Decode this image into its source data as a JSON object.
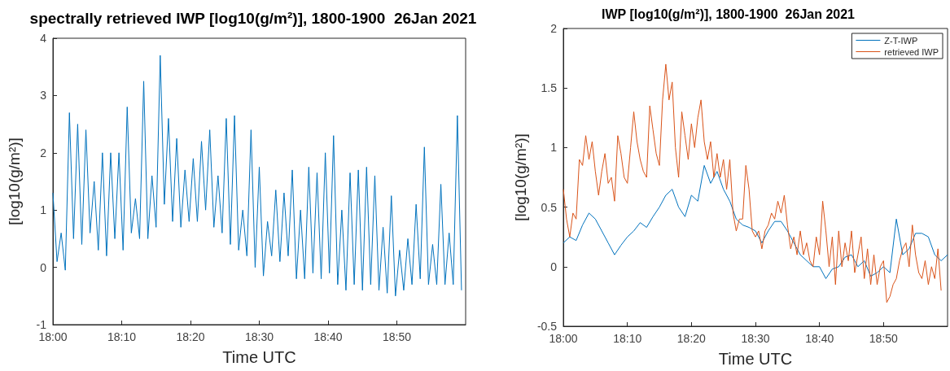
{
  "chart_data": [
    {
      "type": "line",
      "title": "spectrally retrieved IWP [log10(g/m²)], 1800-1900  26Jan 2021",
      "xlabel": "Time UTC",
      "ylabel": "[log10(g/m²)]",
      "xlim": [
        18,
        19
      ],
      "xticks": [
        {
          "value": 18,
          "label": "18:00"
        },
        {
          "value": 18.1667,
          "label": "18:10"
        },
        {
          "value": 18.3333,
          "label": "18:20"
        },
        {
          "value": 18.5,
          "label": "18:30"
        },
        {
          "value": 18.6667,
          "label": "18:40"
        },
        {
          "value": 18.8333,
          "label": "18:50"
        }
      ],
      "ylim": [
        -1,
        4
      ],
      "yticks": [
        -1,
        0,
        1,
        2,
        3,
        4
      ],
      "grid": false,
      "legend": false,
      "series": [
        {
          "color": "#0072bd",
          "x": [
            18,
            18.01,
            18.02,
            18.03,
            18.04,
            18.05,
            18.06,
            18.07,
            18.08,
            18.09,
            18.1,
            18.11,
            18.12,
            18.13,
            18.14,
            18.15,
            18.16,
            18.17,
            18.18,
            18.19,
            18.2,
            18.21,
            18.22,
            18.23,
            18.24,
            18.25,
            18.26,
            18.27,
            18.28,
            18.29,
            18.3,
            18.31,
            18.32,
            18.33,
            18.34,
            18.35,
            18.36,
            18.37,
            18.38,
            18.39,
            18.4,
            18.41,
            18.42,
            18.43,
            18.44,
            18.45,
            18.46,
            18.47,
            18.48,
            18.49,
            18.5,
            18.51,
            18.52,
            18.53,
            18.54,
            18.55,
            18.56,
            18.57,
            18.58,
            18.59,
            18.6,
            18.61,
            18.62,
            18.63,
            18.64,
            18.65,
            18.66,
            18.67,
            18.68,
            18.69,
            18.7,
            18.71,
            18.72,
            18.73,
            18.74,
            18.75,
            18.76,
            18.77,
            18.78,
            18.79,
            18.8,
            18.81,
            18.82,
            18.83,
            18.84,
            18.85,
            18.86,
            18.87,
            18.88,
            18.89,
            18.9,
            18.91,
            18.92,
            18.93,
            18.94,
            18.95,
            18.96,
            18.97,
            18.98,
            18.99
          ],
          "values": [
            1.3,
            0.1,
            0.6,
            -0.05,
            2.7,
            0.5,
            2.5,
            0.4,
            2.4,
            0.6,
            1.5,
            0.3,
            2.0,
            0.2,
            2.0,
            0.5,
            2.0,
            0.3,
            2.8,
            0.6,
            1.2,
            0.5,
            3.25,
            0.5,
            1.6,
            0.7,
            3.7,
            1.1,
            2.6,
            0.8,
            2.25,
            0.7,
            1.7,
            0.8,
            1.9,
            0.8,
            2.2,
            1.0,
            2.4,
            0.7,
            1.6,
            0.6,
            2.6,
            0.4,
            2.65,
            0.3,
            1.0,
            0.2,
            2.4,
            0.0,
            1.75,
            -0.15,
            0.8,
            0.2,
            1.35,
            0.1,
            1.3,
            0.2,
            1.7,
            -0.2,
            1.0,
            -0.2,
            1.75,
            -0.1,
            1.65,
            -0.2,
            2.0,
            -0.1,
            2.3,
            -0.3,
            1.0,
            -0.4,
            1.65,
            -0.3,
            1.7,
            -0.4,
            1.75,
            -0.3,
            1.6,
            -0.4,
            0.7,
            -0.45,
            1.25,
            -0.5,
            0.3,
            -0.4,
            0.5,
            -0.3,
            1.1,
            -0.2,
            2.1,
            -0.3,
            0.4,
            -0.3,
            1.45,
            -0.3,
            0.6,
            -0.3,
            2.65,
            -0.4
          ]
        }
      ]
    },
    {
      "type": "line",
      "title": "IWP [log10(g/m²)], 1800-1900  26Jan 2021",
      "xlabel": "Time UTC",
      "ylabel": "[log10(g/m²)]",
      "xlim": [
        18,
        19
      ],
      "xticks": [
        {
          "value": 18,
          "label": "18:00"
        },
        {
          "value": 18.1667,
          "label": "18:10"
        },
        {
          "value": 18.3333,
          "label": "18:20"
        },
        {
          "value": 18.5,
          "label": "18:30"
        },
        {
          "value": 18.6667,
          "label": "18:40"
        },
        {
          "value": 18.8333,
          "label": "18:50"
        }
      ],
      "ylim": [
        -0.5,
        2
      ],
      "yticks": [
        -0.5,
        0,
        0.5,
        1,
        1.5,
        2
      ],
      "grid": false,
      "legend": "top right",
      "series": [
        {
          "name": "Z-T-IWP",
          "color": "#0072bd",
          "x": [
            18,
            18.0167,
            18.0333,
            18.05,
            18.0667,
            18.0833,
            18.1,
            18.1167,
            18.1333,
            18.15,
            18.1667,
            18.1833,
            18.2,
            18.2167,
            18.2333,
            18.25,
            18.2667,
            18.2833,
            18.3,
            18.3167,
            18.3333,
            18.35,
            18.3667,
            18.3833,
            18.4,
            18.4167,
            18.4333,
            18.45,
            18.4667,
            18.4833,
            18.5,
            18.5167,
            18.5333,
            18.55,
            18.5667,
            18.5833,
            18.6,
            18.6167,
            18.6333,
            18.65,
            18.6667,
            18.6833,
            18.7,
            18.7167,
            18.7333,
            18.75,
            18.7667,
            18.7833,
            18.8,
            18.8167,
            18.8333,
            18.85,
            18.8667,
            18.8833,
            18.9,
            18.9167,
            18.9333,
            18.95,
            18.9667,
            18.9833,
            19
          ],
          "values": [
            0.2,
            0.25,
            0.22,
            0.35,
            0.45,
            0.4,
            0.3,
            0.2,
            0.1,
            0.18,
            0.25,
            0.3,
            0.37,
            0.33,
            0.42,
            0.5,
            0.6,
            0.65,
            0.5,
            0.42,
            0.6,
            0.55,
            0.85,
            0.7,
            0.8,
            0.65,
            0.55,
            0.4,
            0.35,
            0.33,
            0.3,
            0.2,
            0.3,
            0.38,
            0.38,
            0.3,
            0.2,
            0.1,
            0.05,
            0.0,
            0.0,
            -0.1,
            -0.02,
            0.0,
            0.08,
            0.1,
            0.0,
            0.05,
            -0.08,
            -0.05,
            0.0,
            -0.05,
            0.4,
            0.1,
            0.15,
            0.28,
            0.28,
            0.25,
            0.1,
            0.05,
            0.1
          ]
        },
        {
          "name": "retrieved IWP",
          "color": "#d95319",
          "x": [
            18,
            18.0083,
            18.0167,
            18.025,
            18.0333,
            18.0417,
            18.05,
            18.0583,
            18.0667,
            18.075,
            18.0833,
            18.0917,
            18.1,
            18.1083,
            18.1167,
            18.125,
            18.1333,
            18.1417,
            18.15,
            18.1583,
            18.1667,
            18.175,
            18.1833,
            18.1917,
            18.2,
            18.2083,
            18.2167,
            18.225,
            18.2333,
            18.2417,
            18.25,
            18.2583,
            18.2667,
            18.275,
            18.2833,
            18.2917,
            18.3,
            18.3083,
            18.3167,
            18.325,
            18.3333,
            18.3417,
            18.35,
            18.3583,
            18.3667,
            18.375,
            18.3833,
            18.3917,
            18.4,
            18.4083,
            18.4167,
            18.425,
            18.4333,
            18.4417,
            18.45,
            18.4583,
            18.4667,
            18.475,
            18.4833,
            18.4917,
            18.5,
            18.5083,
            18.5167,
            18.525,
            18.5333,
            18.5417,
            18.55,
            18.5583,
            18.5667,
            18.575,
            18.5833,
            18.5917,
            18.6,
            18.6083,
            18.6167,
            18.625,
            18.6333,
            18.6417,
            18.65,
            18.6583,
            18.6667,
            18.675,
            18.6833,
            18.6917,
            18.7,
            18.7083,
            18.7167,
            18.725,
            18.7333,
            18.7417,
            18.75,
            18.7583,
            18.7667,
            18.775,
            18.7833,
            18.7917,
            18.8,
            18.8083,
            18.8167,
            18.825,
            18.8333,
            18.8417,
            18.85,
            18.8583,
            18.8667,
            18.875,
            18.8833,
            18.8917,
            18.9,
            18.9083,
            18.9167,
            18.925,
            18.9333,
            18.9417,
            18.95,
            18.9583,
            18.9667,
            18.975,
            18.9833
          ],
          "values": [
            0.65,
            0.4,
            0.25,
            0.45,
            0.4,
            0.9,
            0.85,
            1.1,
            0.9,
            1.05,
            0.8,
            0.6,
            0.8,
            0.95,
            0.7,
            0.75,
            0.55,
            1.1,
            0.95,
            0.75,
            0.7,
            1.0,
            1.3,
            1.05,
            0.9,
            0.8,
            0.75,
            1.35,
            1.15,
            0.95,
            0.85,
            1.4,
            1.7,
            1.4,
            1.55,
            1.0,
            0.75,
            1.3,
            1.1,
            0.9,
            1.2,
            1.0,
            1.25,
            1.4,
            1.05,
            0.9,
            1.05,
            0.75,
            0.95,
            0.75,
            0.9,
            0.65,
            0.9,
            0.45,
            0.3,
            0.4,
            0.4,
            0.85,
            0.65,
            0.3,
            0.25,
            0.3,
            0.15,
            0.3,
            0.35,
            0.45,
            0.4,
            0.55,
            0.45,
            0.6,
            0.35,
            0.15,
            0.25,
            0.1,
            0.3,
            0.1,
            0.2,
            0.05,
            0.0,
            0.25,
            0.1,
            0.55,
            0.3,
            0.0,
            0.25,
            -0.15,
            0.3,
            0.0,
            0.2,
            0.05,
            0.3,
            -0.05,
            0.1,
            0.25,
            -0.1,
            0.15,
            -0.15,
            0.1,
            -0.15,
            0.0,
            0.05,
            -0.3,
            -0.25,
            -0.15,
            -0.1,
            0.05,
            0.15,
            0.2,
            0.0,
            0.35,
            0.1,
            -0.05,
            -0.1,
            0.05,
            -0.15,
            0.0,
            -0.1,
            0.15,
            -0.2
          ]
        }
      ]
    }
  ]
}
